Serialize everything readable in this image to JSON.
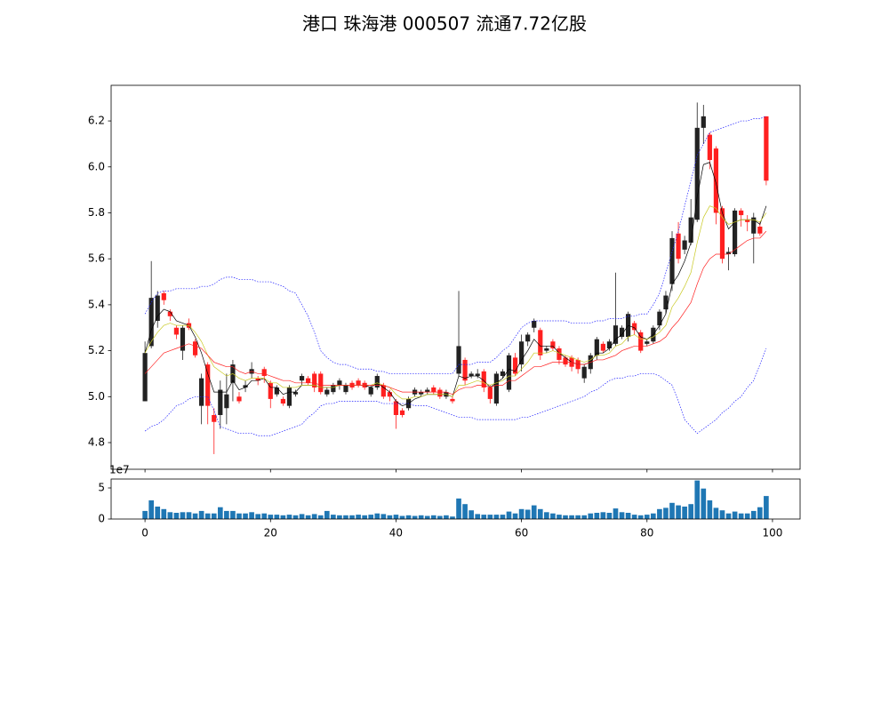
{
  "chart_data": [
    {
      "type": "candlestick",
      "title": "港口 珠海港 000507 流通7.72亿股",
      "up_color": "#222222",
      "down_color": "#ff2020",
      "open": [
        4.98,
        5.22,
        5.33,
        5.45,
        5.37,
        5.3,
        5.2,
        5.32,
        5.24,
        4.96,
        5.14,
        4.92,
        4.92,
        4.95,
        5.06,
        5.0,
        5.04,
        5.1,
        5.08,
        5.12,
        5.06,
        5.01,
        4.99,
        4.96,
        5.01,
        5.07,
        5.08,
        5.1,
        5.1,
        5.01,
        5.02,
        5.05,
        5.02,
        5.06,
        5.07,
        5.06,
        5.01,
        5.04,
        5.05,
        5.02,
        4.98,
        4.94,
        4.95,
        5.01,
        5.01,
        5.02,
        5.04,
        5.03,
        5.0,
        4.99,
        5.1,
        5.16,
        5.09,
        5.09,
        5.11,
        5.04,
        4.97,
        5.09,
        5.03,
        5.17,
        5.14,
        5.24,
        5.3,
        5.29,
        5.2,
        5.24,
        5.21,
        5.17,
        5.17,
        5.16,
        5.08,
        5.12,
        5.18,
        5.23,
        5.21,
        5.23,
        5.26,
        5.26,
        5.32,
        5.28,
        5.23,
        5.24,
        5.31,
        5.38,
        5.49,
        5.71,
        5.64,
        5.67,
        5.77,
        6.17,
        6.14,
        6.08,
        5.82,
        5.62,
        5.62,
        5.81,
        5.77,
        5.71,
        5.74,
        6.22
      ],
      "high": [
        5.24,
        5.59,
        5.46,
        5.46,
        5.38,
        5.31,
        5.31,
        5.34,
        5.25,
        5.1,
        5.15,
        4.95,
        5.07,
        5.1,
        5.16,
        5.02,
        5.07,
        5.15,
        5.09,
        5.13,
        5.07,
        5.05,
        5.0,
        5.05,
        5.03,
        5.1,
        5.09,
        5.11,
        5.11,
        5.04,
        5.06,
        5.08,
        5.06,
        5.07,
        5.08,
        5.07,
        5.05,
        5.1,
        5.06,
        5.03,
        4.99,
        4.95,
        5.0,
        5.04,
        5.03,
        5.04,
        5.05,
        5.04,
        5.03,
        5.0,
        5.46,
        5.17,
        5.11,
        5.12,
        5.12,
        5.05,
        5.11,
        5.12,
        5.19,
        5.19,
        5.27,
        5.28,
        5.34,
        5.3,
        5.22,
        5.25,
        5.22,
        5.18,
        5.18,
        5.17,
        5.14,
        5.19,
        5.26,
        5.24,
        5.25,
        5.54,
        5.31,
        5.37,
        5.33,
        5.29,
        5.25,
        5.31,
        5.38,
        5.46,
        5.72,
        5.76,
        5.7,
        5.86,
        6.28,
        6.27,
        6.15,
        6.09,
        5.83,
        5.65,
        5.82,
        5.82,
        5.79,
        5.8,
        5.76,
        6.22
      ],
      "low": [
        4.98,
        5.21,
        5.3,
        5.4,
        5.33,
        5.25,
        5.16,
        5.29,
        5.17,
        4.88,
        4.88,
        4.75,
        4.86,
        4.88,
        4.98,
        4.97,
        5.02,
        5.08,
        5.05,
        5.06,
        4.95,
        5.0,
        4.96,
        4.95,
        5.0,
        5.05,
        5.05,
        5.02,
        5.01,
        5.0,
        5.01,
        5.03,
        5.01,
        5.03,
        5.04,
        5.03,
        5.0,
        5.03,
        4.99,
        4.98,
        4.86,
        4.91,
        4.94,
        5.0,
        5.0,
        5.01,
        5.01,
        4.99,
        4.99,
        4.97,
        5.09,
        5.05,
        5.08,
        5.08,
        5.02,
        4.97,
        4.96,
        5.08,
        5.02,
        5.09,
        5.11,
        5.22,
        5.28,
        5.16,
        5.19,
        5.2,
        5.14,
        5.13,
        5.11,
        5.1,
        5.06,
        5.1,
        5.16,
        5.19,
        5.2,
        5.22,
        5.25,
        5.24,
        5.27,
        5.19,
        5.22,
        5.23,
        5.29,
        5.36,
        5.46,
        5.58,
        5.62,
        5.66,
        5.76,
        6.1,
        5.99,
        5.75,
        5.58,
        5.55,
        5.61,
        5.74,
        5.72,
        5.58,
        5.7,
        5.92
      ],
      "close": [
        5.19,
        5.43,
        5.44,
        5.42,
        5.35,
        5.27,
        5.3,
        5.3,
        5.18,
        5.08,
        4.96,
        4.89,
        5.03,
        5.01,
        5.14,
        4.98,
        5.05,
        5.12,
        5.07,
        5.09,
        4.99,
        5.04,
        4.97,
        5.04,
        5.02,
        5.09,
        5.06,
        5.04,
        5.02,
        5.03,
        5.05,
        5.07,
        5.05,
        5.04,
        5.05,
        5.04,
        5.04,
        5.09,
        5.0,
        5.0,
        4.92,
        4.92,
        4.99,
        5.03,
        5.02,
        5.03,
        5.02,
        5.0,
        5.02,
        4.98,
        5.22,
        5.07,
        5.1,
        5.1,
        5.04,
        4.99,
        5.1,
        5.11,
        5.18,
        5.1,
        5.24,
        5.27,
        5.33,
        5.18,
        5.21,
        5.21,
        5.16,
        5.14,
        5.13,
        5.12,
        5.13,
        5.18,
        5.25,
        5.2,
        5.24,
        5.31,
        5.3,
        5.36,
        5.29,
        5.2,
        5.24,
        5.3,
        5.37,
        5.44,
        5.69,
        5.6,
        5.68,
        5.78,
        6.17,
        6.22,
        6.03,
        5.8,
        5.6,
        5.63,
        5.81,
        5.79,
        5.76,
        5.78,
        5.71,
        5.94
      ],
      "series": [
        {
          "color": "#000000",
          "style": "solid",
          "values": [
            5.19,
            5.29,
            5.35,
            5.38,
            5.37,
            5.33,
            5.32,
            5.31,
            5.26,
            5.19,
            5.1,
            5.02,
            5.02,
            5.02,
            5.07,
            5.03,
            5.04,
            5.07,
            5.07,
            5.08,
            5.04,
            5.04,
            5.01,
            5.02,
            5.02,
            5.05,
            5.05,
            5.05,
            5.04,
            5.04,
            5.04,
            5.05,
            5.05,
            5.05,
            5.05,
            5.05,
            5.04,
            5.06,
            5.04,
            5.02,
            4.98,
            4.96,
            4.97,
            4.99,
            5.0,
            5.01,
            5.01,
            5.01,
            5.01,
            5.0,
            5.09,
            5.08,
            5.09,
            5.09,
            5.07,
            5.04,
            5.06,
            5.08,
            5.12,
            5.11,
            5.16,
            5.2,
            5.25,
            5.22,
            5.22,
            5.22,
            5.19,
            5.17,
            5.15,
            5.14,
            5.14,
            5.15,
            5.19,
            5.19,
            5.21,
            5.25,
            5.27,
            5.31,
            5.3,
            5.26,
            5.25,
            5.27,
            5.31,
            5.36,
            5.49,
            5.53,
            5.59,
            5.67,
            5.87,
            6.01,
            6.02,
            5.93,
            5.8,
            5.73,
            5.76,
            5.77,
            5.77,
            5.77,
            5.75,
            5.83
          ]
        },
        {
          "color": "#c8c820",
          "style": "solid",
          "values": [
            5.19,
            5.24,
            5.28,
            5.31,
            5.32,
            5.31,
            5.31,
            5.31,
            5.28,
            5.24,
            5.18,
            5.13,
            5.11,
            5.09,
            5.1,
            5.08,
            5.07,
            5.08,
            5.08,
            5.08,
            5.06,
            5.06,
            5.04,
            5.04,
            5.04,
            5.05,
            5.05,
            5.05,
            5.04,
            5.04,
            5.04,
            5.05,
            5.05,
            5.05,
            5.05,
            5.05,
            5.05,
            5.06,
            5.05,
            5.04,
            5.01,
            4.99,
            4.99,
            5.0,
            5.0,
            5.01,
            5.01,
            5.01,
            5.01,
            5.0,
            5.05,
            5.05,
            5.06,
            5.07,
            5.06,
            5.05,
            5.06,
            5.07,
            5.09,
            5.09,
            5.12,
            5.15,
            5.19,
            5.19,
            5.19,
            5.2,
            5.19,
            5.18,
            5.17,
            5.16,
            5.15,
            5.16,
            5.18,
            5.18,
            5.19,
            5.22,
            5.23,
            5.26,
            5.27,
            5.25,
            5.25,
            5.26,
            5.28,
            5.31,
            5.39,
            5.43,
            5.48,
            5.54,
            5.67,
            5.78,
            5.83,
            5.82,
            5.78,
            5.75,
            5.76,
            5.77,
            5.77,
            5.77,
            5.76,
            5.8
          ]
        },
        {
          "color": "#ff2020",
          "style": "solid",
          "values": [
            5.1,
            5.13,
            5.16,
            5.19,
            5.2,
            5.21,
            5.22,
            5.23,
            5.22,
            5.21,
            5.18,
            5.15,
            5.14,
            5.13,
            5.13,
            5.11,
            5.1,
            5.11,
            5.1,
            5.1,
            5.09,
            5.08,
            5.07,
            5.07,
            5.06,
            5.06,
            5.06,
            5.06,
            5.05,
            5.05,
            5.05,
            5.05,
            5.05,
            5.05,
            5.05,
            5.05,
            5.05,
            5.05,
            5.05,
            5.04,
            5.03,
            5.02,
            5.02,
            5.02,
            5.02,
            5.02,
            5.02,
            5.02,
            5.02,
            5.01,
            5.03,
            5.04,
            5.04,
            5.05,
            5.05,
            5.04,
            5.05,
            5.05,
            5.07,
            5.07,
            5.09,
            5.11,
            5.13,
            5.13,
            5.14,
            5.15,
            5.15,
            5.15,
            5.15,
            5.14,
            5.14,
            5.15,
            5.16,
            5.16,
            5.17,
            5.18,
            5.2,
            5.21,
            5.22,
            5.22,
            5.22,
            5.23,
            5.24,
            5.26,
            5.3,
            5.33,
            5.37,
            5.41,
            5.49,
            5.56,
            5.6,
            5.62,
            5.62,
            5.62,
            5.64,
            5.66,
            5.68,
            5.69,
            5.69,
            5.72
          ]
        },
        {
          "color": "#2020ff",
          "style": "dotted",
          "values": [
            5.36,
            5.41,
            5.45,
            5.46,
            5.46,
            5.47,
            5.47,
            5.47,
            5.47,
            5.48,
            5.48,
            5.49,
            5.51,
            5.52,
            5.52,
            5.51,
            5.51,
            5.51,
            5.5,
            5.5,
            5.5,
            5.49,
            5.48,
            5.46,
            5.45,
            5.4,
            5.35,
            5.28,
            5.2,
            5.17,
            5.15,
            5.14,
            5.14,
            5.13,
            5.12,
            5.12,
            5.12,
            5.11,
            5.11,
            5.1,
            5.1,
            5.1,
            5.1,
            5.1,
            5.1,
            5.1,
            5.1,
            5.1,
            5.1,
            5.1,
            5.14,
            5.14,
            5.14,
            5.15,
            5.15,
            5.15,
            5.17,
            5.2,
            5.22,
            5.26,
            5.3,
            5.32,
            5.33,
            5.33,
            5.33,
            5.33,
            5.33,
            5.33,
            5.32,
            5.32,
            5.32,
            5.32,
            5.33,
            5.33,
            5.34,
            5.34,
            5.34,
            5.35,
            5.35,
            5.36,
            5.36,
            5.4,
            5.45,
            5.54,
            5.63,
            5.72,
            5.83,
            5.94,
            6.05,
            6.1,
            6.15,
            6.16,
            6.17,
            6.18,
            6.19,
            6.2,
            6.2,
            6.21,
            6.21,
            6.22
          ]
        },
        {
          "color": "#2020ff",
          "style": "dotted",
          "values": [
            4.85,
            4.87,
            4.88,
            4.9,
            4.93,
            4.96,
            4.97,
            4.99,
            5.0,
            5.0,
            5.0,
            4.94,
            4.87,
            4.86,
            4.85,
            4.84,
            4.84,
            4.84,
            4.83,
            4.83,
            4.83,
            4.84,
            4.85,
            4.86,
            4.87,
            4.88,
            4.91,
            4.93,
            4.96,
            4.97,
            4.97,
            4.98,
            4.98,
            4.98,
            4.98,
            4.98,
            4.98,
            4.98,
            4.97,
            4.97,
            4.97,
            4.97,
            4.97,
            4.96,
            4.96,
            4.96,
            4.95,
            4.94,
            4.93,
            4.92,
            4.91,
            4.91,
            4.91,
            4.9,
            4.9,
            4.9,
            4.9,
            4.9,
            4.9,
            4.9,
            4.91,
            4.91,
            4.92,
            4.93,
            4.94,
            4.95,
            4.96,
            4.97,
            4.98,
            4.99,
            5.0,
            5.02,
            5.03,
            5.05,
            5.07,
            5.08,
            5.08,
            5.09,
            5.09,
            5.1,
            5.1,
            5.1,
            5.09,
            5.07,
            5.05,
            4.98,
            4.9,
            4.87,
            4.84,
            4.86,
            4.88,
            4.9,
            4.93,
            4.95,
            4.98,
            5.0,
            5.04,
            5.07,
            5.14,
            5.21
          ]
        }
      ],
      "xlim": [
        -5.4,
        104.4
      ],
      "xticks": [
        0,
        20,
        40,
        60,
        80,
        100
      ],
      "ylim": [
        4.684,
        6.355
      ],
      "yticks": [
        4.8,
        {
          "value": 5,
          "label": "5.0"
        },
        5.2,
        5.4,
        5.6,
        5.8,
        {
          "value": 6,
          "label": "6.0"
        },
        6.2
      ]
    },
    {
      "type": "bar",
      "color": "#1f77b4",
      "offset_label": "1e7",
      "values": [
        1.3,
        3.0,
        2.0,
        1.6,
        1.1,
        1.0,
        1.1,
        1.1,
        0.9,
        1.3,
        0.9,
        0.9,
        1.9,
        1.3,
        1.3,
        0.9,
        0.9,
        1.1,
        0.8,
        0.9,
        0.7,
        0.7,
        0.6,
        0.7,
        0.6,
        0.8,
        0.6,
        0.8,
        0.6,
        1.3,
        0.7,
        0.6,
        0.6,
        0.6,
        0.7,
        0.6,
        0.7,
        0.9,
        0.8,
        0.6,
        0.7,
        0.5,
        0.6,
        0.5,
        0.6,
        0.5,
        0.6,
        0.5,
        0.6,
        0.4,
        3.3,
        2.4,
        1.4,
        0.8,
        0.7,
        0.7,
        0.7,
        0.7,
        1.2,
        0.9,
        1.6,
        1.5,
        2.2,
        1.6,
        1.1,
        0.9,
        0.7,
        0.6,
        0.6,
        0.6,
        0.6,
        0.9,
        1.0,
        1.1,
        1.0,
        1.7,
        1.1,
        1.0,
        0.7,
        0.6,
        0.7,
        0.9,
        1.6,
        1.8,
        2.6,
        2.2,
        2.0,
        2.4,
        6.2,
        4.9,
        3.0,
        1.8,
        1.4,
        0.9,
        1.2,
        0.9,
        0.9,
        1.3,
        1.9,
        3.7
      ],
      "xlim": [
        -5.4,
        104.4
      ],
      "xticks": [
        0,
        20,
        40,
        60,
        80,
        100
      ],
      "ylim": [
        0,
        6.43
      ],
      "yticks": [
        0,
        5
      ]
    }
  ]
}
